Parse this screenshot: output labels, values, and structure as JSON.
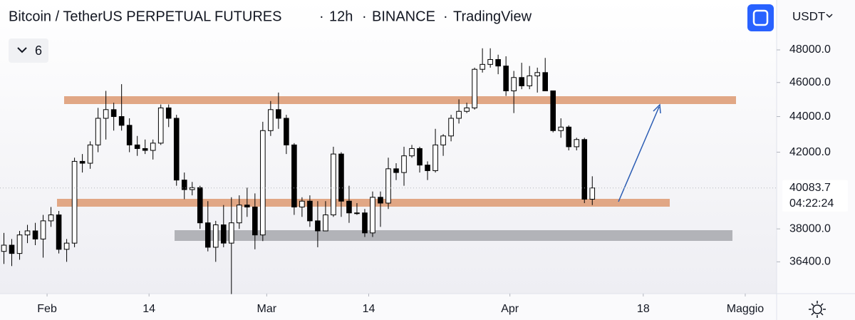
{
  "toolbar": {
    "symbol": "Bitcoin / TetherUS PERPETUAL FUTURES",
    "interval": "12h",
    "exchange": "BINANCE",
    "source": "TradingView",
    "currency": "USDT",
    "indicators": "6"
  },
  "chart_data": {
    "type": "candlestick",
    "log_scale": true,
    "colors": {
      "up": "#ffffff",
      "down": "#000000",
      "wick": "#000000"
    },
    "x": [
      "01-26",
      "01-27",
      "01-28",
      "01-29",
      "01-30",
      "01-31",
      "02-01",
      "02-02",
      "02-03",
      "02-04",
      "02-05",
      "02-06",
      "02-07",
      "02-08",
      "02-09",
      "02-10",
      "02-11",
      "02-12",
      "02-13",
      "02-14",
      "02-15",
      "02-16",
      "02-17",
      "02-18",
      "02-19",
      "02-20",
      "02-21",
      "02-22",
      "02-23",
      "02-24",
      "02-25",
      "02-26",
      "02-27",
      "02-28",
      "03-01",
      "03-02",
      "03-03",
      "03-04",
      "03-05",
      "03-06",
      "03-07",
      "03-08",
      "03-09",
      "03-10",
      "03-11",
      "03-12",
      "03-13",
      "03-14",
      "03-15",
      "03-16",
      "03-17",
      "03-18",
      "03-19",
      "03-20",
      "03-21",
      "03-22",
      "03-23",
      "03-24",
      "03-25",
      "03-26",
      "03-27",
      "03-28",
      "03-29",
      "03-30",
      "03-31",
      "04-01",
      "04-02",
      "04-03",
      "04-04",
      "04-05",
      "04-06",
      "04-07",
      "04-08",
      "04-09",
      "04-10",
      "04-11"
    ],
    "open": [
      36900,
      37200,
      36800,
      37700,
      37900,
      37500,
      38400,
      38700,
      37000,
      37300,
      41500,
      41400,
      42400,
      43900,
      44400,
      44000,
      43500,
      42400,
      42200,
      42100,
      42500,
      44500,
      43900,
      40500,
      40000,
      40100,
      38300,
      37100,
      38200,
      37300,
      38300,
      39200,
      39100,
      37700,
      43200,
      44400,
      43900,
      42400,
      39100,
      39400,
      38400,
      37900,
      38700,
      41900,
      39400,
      38800,
      38800,
      37800,
      39600,
      39300,
      41100,
      40900,
      41800,
      42200,
      41300,
      41000,
      42400,
      42900,
      43900,
      44300,
      44500,
      46800,
      47100,
      47400,
      47000,
      45500,
      46300,
      45800,
      46400,
      46600,
      45500,
      43200,
      43400,
      42300,
      42700,
      39500
    ],
    "high": [
      37800,
      37500,
      37900,
      38200,
      38300,
      38700,
      39100,
      38900,
      37500,
      41700,
      41900,
      42600,
      44500,
      45500,
      44800,
      45900,
      43900,
      42900,
      42700,
      42700,
      44700,
      44700,
      44100,
      40900,
      40400,
      40200,
      39400,
      38400,
      39200,
      39600,
      39700,
      40100,
      39800,
      43700,
      44900,
      45400,
      44100,
      42500,
      39600,
      39700,
      39400,
      39400,
      42300,
      42000,
      40200,
      39300,
      39000,
      39900,
      39900,
      41700,
      41400,
      42300,
      42400,
      42300,
      41500,
      43300,
      43000,
      44100,
      45000,
      44800,
      46900,
      48100,
      48100,
      47700,
      47600,
      46700,
      47200,
      47000,
      46900,
      47500,
      45500,
      43900,
      43500,
      42800,
      42800,
      40700
    ],
    "low": [
      36300,
      36200,
      36500,
      37300,
      37200,
      36600,
      38100,
      36800,
      36400,
      37100,
      40900,
      41100,
      42000,
      42700,
      43200,
      43200,
      42000,
      41800,
      41900,
      41600,
      42400,
      43400,
      40200,
      39500,
      39700,
      38000,
      36900,
      36400,
      37100,
      34900,
      38000,
      38600,
      37000,
      37400,
      42900,
      43300,
      41900,
      38700,
      38600,
      38100,
      37100,
      37900,
      38600,
      38600,
      38300,
      38700,
      37600,
      37600,
      38100,
      39000,
      40500,
      40200,
      41700,
      40900,
      40500,
      40900,
      41800,
      42600,
      43600,
      44200,
      44400,
      46600,
      46900,
      46500,
      45200,
      44200,
      45600,
      45600,
      45400,
      45500,
      43100,
      42800,
      42100,
      42100,
      39300,
      39200
    ],
    "close": [
      37200,
      36800,
      37700,
      37900,
      37500,
      38400,
      38700,
      37000,
      37300,
      41500,
      41400,
      42400,
      43900,
      44400,
      44000,
      43500,
      42400,
      42200,
      42100,
      42500,
      44500,
      43900,
      40500,
      40000,
      40100,
      38300,
      37100,
      38200,
      37300,
      38300,
      39200,
      39100,
      37700,
      43200,
      44400,
      43900,
      42400,
      39100,
      39400,
      38400,
      37900,
      38700,
      41900,
      39400,
      38800,
      38800,
      37800,
      39600,
      39300,
      41100,
      40900,
      41800,
      42200,
      41300,
      41000,
      42400,
      42900,
      43900,
      44300,
      44500,
      46800,
      47100,
      47400,
      47000,
      45500,
      46300,
      45800,
      46400,
      46600,
      45500,
      43200,
      43400,
      42300,
      42700,
      39500,
      40083.7
    ],
    "last_price": 40083.7,
    "countdown": "04:22:24",
    "xlim": [
      "01-26",
      "05-05"
    ],
    "xticks": [
      {
        "value": "02-01",
        "label": "Feb"
      },
      {
        "value": "02-14",
        "label": "14"
      },
      {
        "value": "03-01",
        "label": "Mar"
      },
      {
        "value": "03-14",
        "label": "14"
      },
      {
        "value": "04-01",
        "label": "Apr"
      },
      {
        "value": "04-18",
        "label": "18"
      },
      {
        "value": "05-01",
        "label": "Maggio"
      }
    ],
    "ylim": [
      34920,
      51230
    ],
    "yticks": [
      {
        "value": 36400,
        "label": "36400.0"
      },
      {
        "value": 38000,
        "label": "38000.0"
      },
      {
        "value": 42000,
        "label": "42000.0"
      },
      {
        "value": 44000,
        "label": "44000.0"
      },
      {
        "value": 46000,
        "label": "46000.0"
      },
      {
        "value": 48000,
        "label": "48000.0"
      }
    ]
  }
}
